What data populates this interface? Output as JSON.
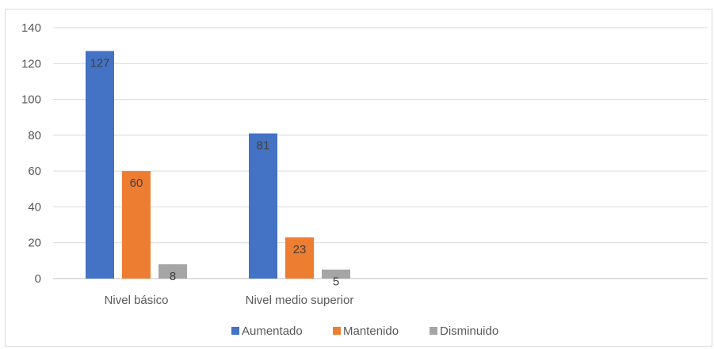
{
  "chart_data": {
    "type": "bar",
    "title": "",
    "xlabel": "",
    "ylabel": "",
    "categories": [
      "Nivel básico",
      "Nivel medio superior"
    ],
    "series": [
      {
        "name": "Aumentado",
        "values": [
          127,
          81
        ],
        "color": "#4472C4"
      },
      {
        "name": "Mantenido",
        "values": [
          60,
          23
        ],
        "color": "#ED7D31"
      },
      {
        "name": "Disminuido",
        "values": [
          8,
          5
        ],
        "color": "#A5A5A5"
      }
    ],
    "ylim": [
      0,
      140
    ],
    "yticks": [
      0,
      20,
      40,
      60,
      80,
      100,
      120,
      140
    ],
    "grid": true,
    "legend_position": "bottom",
    "data_labels": true
  }
}
